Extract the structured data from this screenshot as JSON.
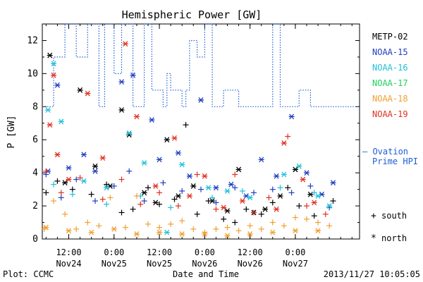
{
  "chart_data": {
    "type": "scatter",
    "title": "Hemispheric Power [GW]",
    "ylabel": "P [GW]",
    "xlabel": "Date and Time",
    "footer_left": "Plot: CCMC",
    "footer_right": "2013/11/27 10:05:05",
    "ylim": [
      0,
      13
    ],
    "yticks": [
      "0",
      "2",
      "4",
      "6",
      "8",
      "10",
      "12"
    ],
    "xlim": [
      "2013-11-24 05:00",
      "2013-11-27 17:00"
    ],
    "xticks": [
      {
        "t": "2013-11-24 12:00",
        "l1": "12:00",
        "l2": "Nov24"
      },
      {
        "t": "2013-11-25 00:00",
        "l1": "0:00",
        "l2": "Nov25"
      },
      {
        "t": "2013-11-25 12:00",
        "l1": "12:00",
        "l2": "Nov25"
      },
      {
        "t": "2013-11-26 00:00",
        "l1": "0:00",
        "l2": "Nov26"
      },
      {
        "t": "2013-11-26 12:00",
        "l1": "12:00",
        "l2": "Nov26"
      },
      {
        "t": "2013-11-27 00:00",
        "l1": "0:00",
        "l2": "Nov27"
      }
    ],
    "grid": false,
    "legend": {
      "placement": "right",
      "series": [
        {
          "name": "METP-02",
          "color": "#000000"
        },
        {
          "name": "NOAA-15",
          "color": "#1f3fbf"
        },
        {
          "name": "NOAA-16",
          "color": "#20c0d8"
        },
        {
          "name": "NOAA-17",
          "color": "#20d060"
        },
        {
          "name": "NOAA-18",
          "color": "#f0a030"
        },
        {
          "name": "NOAA-19",
          "color": "#e03020"
        }
      ],
      "ovation_label_1": "— Ovation",
      "ovation_label_2": "Prime HPI",
      "ovation_color": "#1f5fd0",
      "south_symbol": "+",
      "south_label": "south",
      "north_symbol": "*",
      "north_label": "north"
    },
    "ovation_hpi": [
      [
        "2013-11-24 05:00",
        8
      ],
      [
        "2013-11-24 08:00",
        8
      ],
      [
        "2013-11-24 08:00",
        11
      ],
      [
        "2013-11-24 11:00",
        11
      ],
      [
        "2013-11-24 11:00",
        13
      ],
      [
        "2013-11-24 14:00",
        13
      ],
      [
        "2013-11-24 14:00",
        11
      ],
      [
        "2013-11-24 17:00",
        11
      ],
      [
        "2013-11-24 17:00",
        13
      ],
      [
        "2013-11-24 20:00",
        13
      ],
      [
        "2013-11-24 20:00",
        8
      ],
      [
        "2013-11-24 21:30",
        8
      ],
      [
        "2013-11-24 21:30",
        13
      ],
      [
        "2013-11-25 00:00",
        13
      ],
      [
        "2013-11-25 00:00",
        10
      ],
      [
        "2013-11-25 02:00",
        10
      ],
      [
        "2013-11-25 02:00",
        13
      ],
      [
        "2013-11-25 05:00",
        13
      ],
      [
        "2013-11-25 05:00",
        8
      ],
      [
        "2013-11-25 08:00",
        8
      ],
      [
        "2013-11-25 08:00",
        13
      ],
      [
        "2013-11-25 10:00",
        13
      ],
      [
        "2013-11-25 10:00",
        9
      ],
      [
        "2013-11-25 13:00",
        9
      ],
      [
        "2013-11-25 13:00",
        8
      ],
      [
        "2013-11-25 14:00",
        8
      ],
      [
        "2013-11-25 14:00",
        10
      ],
      [
        "2013-11-25 15:00",
        10
      ],
      [
        "2013-11-25 15:00",
        9
      ],
      [
        "2013-11-25 18:00",
        9
      ],
      [
        "2013-11-25 18:00",
        8
      ],
      [
        "2013-11-25 19:00",
        8
      ],
      [
        "2013-11-25 19:00",
        9
      ],
      [
        "2013-11-25 20:00",
        9
      ],
      [
        "2013-11-25 20:00",
        12
      ],
      [
        "2013-11-25 22:00",
        12
      ],
      [
        "2013-11-25 22:00",
        11
      ],
      [
        "2013-11-26 00:00",
        11
      ],
      [
        "2013-11-26 00:00",
        13
      ],
      [
        "2013-11-26 02:00",
        13
      ],
      [
        "2013-11-26 02:00",
        8
      ],
      [
        "2013-11-26 05:00",
        8
      ],
      [
        "2013-11-26 05:00",
        9
      ],
      [
        "2013-11-26 09:00",
        9
      ],
      [
        "2013-11-26 09:00",
        8
      ],
      [
        "2013-11-26 10:00",
        8
      ],
      [
        "2013-11-26 10:00",
        8
      ],
      [
        "2013-11-26 18:00",
        8
      ],
      [
        "2013-11-26 18:00",
        13
      ],
      [
        "2013-11-26 20:00",
        13
      ],
      [
        "2013-11-26 20:00",
        8
      ],
      [
        "2013-11-26 23:00",
        8
      ],
      [
        "2013-11-26 23:00",
        8
      ],
      [
        "2013-11-27 01:00",
        8
      ],
      [
        "2013-11-27 01:00",
        9
      ],
      [
        "2013-11-27 04:00",
        9
      ],
      [
        "2013-11-27 04:00",
        8
      ],
      [
        "2013-11-27 17:00",
        8
      ]
    ],
    "series": [
      {
        "name": "METP-02",
        "south": [
          [
            "2013-11-24 06:00",
            2.8
          ],
          [
            "2013-11-24 09:00",
            3.5
          ],
          [
            "2013-11-24 13:00",
            3.0
          ],
          [
            "2013-11-24 18:00",
            2.7
          ],
          [
            "2013-11-24 22:00",
            3.3
          ],
          [
            "2013-11-25 02:00",
            1.6
          ],
          [
            "2013-11-25 05:00",
            1.8
          ],
          [
            "2013-11-25 09:00",
            3.1
          ],
          [
            "2013-11-25 12:00",
            2.1
          ],
          [
            "2013-11-25 16:00",
            2.4
          ],
          [
            "2013-11-25 19:00",
            6.9
          ],
          [
            "2013-11-25 22:00",
            1.5
          ],
          [
            "2013-11-26 01:00",
            2.3
          ],
          [
            "2013-11-26 05:00",
            1.2
          ],
          [
            "2013-11-26 08:00",
            1.0
          ],
          [
            "2013-11-26 11:00",
            1.8
          ],
          [
            "2013-11-26 15:00",
            1.5
          ],
          [
            "2013-11-26 18:00",
            2.2
          ],
          [
            "2013-11-26 22:00",
            3.1
          ],
          [
            "2013-11-27 01:00",
            2.0
          ],
          [
            "2013-11-27 05:00",
            1.4
          ],
          [
            "2013-11-27 10:00",
            2.3
          ]
        ],
        "north": [
          [
            "2013-11-24 07:00",
            11.1
          ],
          [
            "2013-11-24 11:00",
            3.4
          ],
          [
            "2013-11-24 15:00",
            9.0
          ],
          [
            "2013-11-24 19:00",
            4.4
          ],
          [
            "2013-11-24 23:00",
            3.2
          ],
          [
            "2013-11-25 02:00",
            7.8
          ],
          [
            "2013-11-25 04:00",
            6.3
          ],
          [
            "2013-11-25 08:00",
            2.8
          ],
          [
            "2013-11-25 11:00",
            2.2
          ],
          [
            "2013-11-25 14:00",
            6.0
          ],
          [
            "2013-11-25 17:00",
            2.6
          ],
          [
            "2013-11-25 21:00",
            3.2
          ],
          [
            "2013-11-26 02:00",
            2.3
          ],
          [
            "2013-11-26 06:00",
            1.7
          ],
          [
            "2013-11-26 09:00",
            4.2
          ],
          [
            "2013-11-26 13:00",
            1.6
          ],
          [
            "2013-11-26 16:00",
            1.8
          ],
          [
            "2013-11-26 20:00",
            2.6
          ],
          [
            "2013-11-27 00:00",
            4.2
          ],
          [
            "2013-11-27 04:00",
            2.7
          ]
        ]
      },
      {
        "name": "NOAA-15",
        "south": [
          [
            "2013-11-24 06:00",
            3.9
          ],
          [
            "2013-11-24 10:00",
            2.5
          ],
          [
            "2013-11-24 14:00",
            3.6
          ],
          [
            "2013-11-24 19:00",
            2.3
          ],
          [
            "2013-11-25 00:00",
            3.2
          ],
          [
            "2013-11-25 04:00",
            4.1
          ],
          [
            "2013-11-25 08:00",
            2.3
          ],
          [
            "2013-11-25 13:00",
            3.4
          ],
          [
            "2013-11-25 18:00",
            2.9
          ],
          [
            "2013-11-25 23:00",
            3.0
          ],
          [
            "2013-11-26 03:00",
            2.2
          ],
          [
            "2013-11-26 08:00",
            3.1
          ],
          [
            "2013-11-26 13:00",
            2.8
          ],
          [
            "2013-11-26 18:00",
            3.0
          ],
          [
            "2013-11-26 23:00",
            2.8
          ],
          [
            "2013-11-27 04:00",
            3.2
          ],
          [
            "2013-11-27 09:00",
            1.9
          ]
        ],
        "north": [
          [
            "2013-11-24 06:30",
            4.1
          ],
          [
            "2013-11-24 09:00",
            9.3
          ],
          [
            "2013-11-24 12:00",
            4.3
          ],
          [
            "2013-11-24 16:00",
            5.1
          ],
          [
            "2013-11-24 19:00",
            4.1
          ],
          [
            "2013-11-25 02:00",
            9.5
          ],
          [
            "2013-11-25 05:00",
            9.9
          ],
          [
            "2013-11-25 10:00",
            7.2
          ],
          [
            "2013-11-25 12:00",
            4.8
          ],
          [
            "2013-11-25 17:00",
            5.2
          ],
          [
            "2013-11-25 20:00",
            3.8
          ],
          [
            "2013-11-25 23:00",
            8.4
          ],
          [
            "2013-11-26 03:00",
            3.1
          ],
          [
            "2013-11-26 07:00",
            3.3
          ],
          [
            "2013-11-26 11:00",
            2.6
          ],
          [
            "2013-11-26 15:00",
            4.8
          ],
          [
            "2013-11-26 19:00",
            3.8
          ],
          [
            "2013-11-26 23:00",
            7.4
          ],
          [
            "2013-11-27 03:00",
            4.0
          ],
          [
            "2013-11-27 07:00",
            2.7
          ],
          [
            "2013-11-27 10:00",
            3.4
          ]
        ]
      },
      {
        "name": "NOAA-16",
        "south": [
          [
            "2013-11-24 08:00",
            3.3
          ],
          [
            "2013-11-24 13:00",
            2.7
          ],
          [
            "2013-11-24 22:00",
            2.1
          ],
          [
            "2013-11-25 07:00",
            2.6
          ],
          [
            "2013-11-25 15:00",
            1.9
          ],
          [
            "2013-11-26 02:00",
            2.5
          ],
          [
            "2013-11-26 10:00",
            2.9
          ],
          [
            "2013-11-26 20:00",
            3.1
          ],
          [
            "2013-11-27 05:00",
            2.8
          ]
        ],
        "north": [
          [
            "2013-11-24 06:30",
            7.8
          ],
          [
            "2013-11-24 08:00",
            10.6
          ],
          [
            "2013-11-24 10:00",
            7.1
          ],
          [
            "2013-11-24 16:00",
            3.5
          ],
          [
            "2013-11-24 22:00",
            3.1
          ],
          [
            "2013-11-25 04:00",
            6.4
          ],
          [
            "2013-11-25 08:00",
            4.6
          ],
          [
            "2013-11-25 14:00",
            0.4
          ],
          [
            "2013-11-25 18:00",
            4.5
          ],
          [
            "2013-11-26 01:00",
            3.1
          ],
          [
            "2013-11-26 06:00",
            2.9
          ],
          [
            "2013-11-26 12:00",
            2.5
          ],
          [
            "2013-11-26 21:00",
            3.9
          ],
          [
            "2013-11-27 01:00",
            4.4
          ],
          [
            "2013-11-27 06:00",
            2.6
          ],
          [
            "2013-11-27 09:00",
            2.0
          ]
        ]
      },
      {
        "name": "NOAA-18",
        "south": [
          [
            "2013-11-24 05:30",
            0.6
          ],
          [
            "2013-11-24 08:00",
            2.3
          ],
          [
            "2013-11-24 11:00",
            1.5
          ],
          [
            "2013-11-24 14:00",
            0.6
          ],
          [
            "2013-11-24 17:00",
            1.0
          ],
          [
            "2013-11-24 20:00",
            0.8
          ],
          [
            "2013-11-24 23:00",
            2.5
          ],
          [
            "2013-11-25 03:00",
            0.7
          ],
          [
            "2013-11-25 06:00",
            2.6
          ],
          [
            "2013-11-25 09:00",
            0.9
          ],
          [
            "2013-11-25 12:00",
            0.7
          ],
          [
            "2013-11-25 15:00",
            0.9
          ],
          [
            "2013-11-25 18:00",
            1.1
          ],
          [
            "2013-11-25 21:00",
            0.6
          ],
          [
            "2013-11-26 00:00",
            0.4
          ],
          [
            "2013-11-26 03:00",
            0.6
          ],
          [
            "2013-11-26 06:00",
            0.7
          ],
          [
            "2013-11-26 09:00",
            0.5
          ],
          [
            "2013-11-26 12:00",
            0.8
          ],
          [
            "2013-11-26 15:00",
            0.6
          ],
          [
            "2013-11-26 18:00",
            1.0
          ],
          [
            "2013-11-26 21:00",
            0.8
          ],
          [
            "2013-11-27 00:00",
            1.3
          ],
          [
            "2013-11-27 03:00",
            1.2
          ],
          [
            "2013-11-27 06:00",
            1.0
          ],
          [
            "2013-11-27 09:00",
            0.8
          ]
        ],
        "north": [
          [
            "2013-11-24 06:00",
            0.7
          ],
          [
            "2013-11-24 12:00",
            0.5
          ],
          [
            "2013-11-24 18:00",
            0.4
          ],
          [
            "2013-11-25 00:00",
            0.6
          ],
          [
            "2013-11-25 06:00",
            0.3
          ],
          [
            "2013-11-25 12:00",
            0.4
          ],
          [
            "2013-11-25 18:00",
            0.3
          ],
          [
            "2013-11-26 00:00",
            0.3
          ],
          [
            "2013-11-26 06:00",
            0.2
          ],
          [
            "2013-11-26 12:00",
            0.3
          ],
          [
            "2013-11-26 18:00",
            0.4
          ],
          [
            "2013-11-27 00:00",
            0.5
          ],
          [
            "2013-11-27 06:00",
            0.5
          ]
        ]
      },
      {
        "name": "NOAA-19",
        "south": [
          [
            "2013-11-24 06:00",
            4.1
          ],
          [
            "2013-11-24 10:00",
            2.8
          ],
          [
            "2013-11-24 15:00",
            3.7
          ],
          [
            "2013-11-24 21:00",
            2.4
          ],
          [
            "2013-11-25 02:00",
            3.6
          ],
          [
            "2013-11-25 07:00",
            2.1
          ],
          [
            "2013-11-25 12:00",
            2.8
          ],
          [
            "2013-11-25 17:00",
            2.0
          ],
          [
            "2013-11-25 22:00",
            3.9
          ],
          [
            "2013-11-26 03:00",
            1.8
          ],
          [
            "2013-11-26 08:00",
            3.9
          ],
          [
            "2013-11-26 13:00",
            1.6
          ],
          [
            "2013-11-26 17:00",
            2.5
          ],
          [
            "2013-11-26 22:00",
            6.2
          ],
          [
            "2013-11-27 03:00",
            2.0
          ],
          [
            "2013-11-27 08:00",
            1.5
          ]
        ],
        "north": [
          [
            "2013-11-24 07:00",
            6.9
          ],
          [
            "2013-11-24 08:00",
            9.9
          ],
          [
            "2013-11-24 09:00",
            5.1
          ],
          [
            "2013-11-24 12:00",
            3.6
          ],
          [
            "2013-11-24 17:00",
            8.8
          ],
          [
            "2013-11-24 21:00",
            4.9
          ],
          [
            "2013-11-25 03:00",
            11.8
          ],
          [
            "2013-11-25 06:00",
            7.4
          ],
          [
            "2013-11-25 11:00",
            3.2
          ],
          [
            "2013-11-25 16:00",
            6.1
          ],
          [
            "2013-11-25 20:00",
            2.6
          ],
          [
            "2013-11-26 00:00",
            3.8
          ],
          [
            "2013-11-26 05:00",
            1.9
          ],
          [
            "2013-11-26 10:00",
            2.3
          ],
          [
            "2013-11-26 19:00",
            1.8
          ],
          [
            "2013-11-26 21:00",
            5.8
          ],
          [
            "2013-11-27 02:00",
            3.6
          ],
          [
            "2013-11-27 05:00",
            2.2
          ]
        ]
      }
    ]
  }
}
